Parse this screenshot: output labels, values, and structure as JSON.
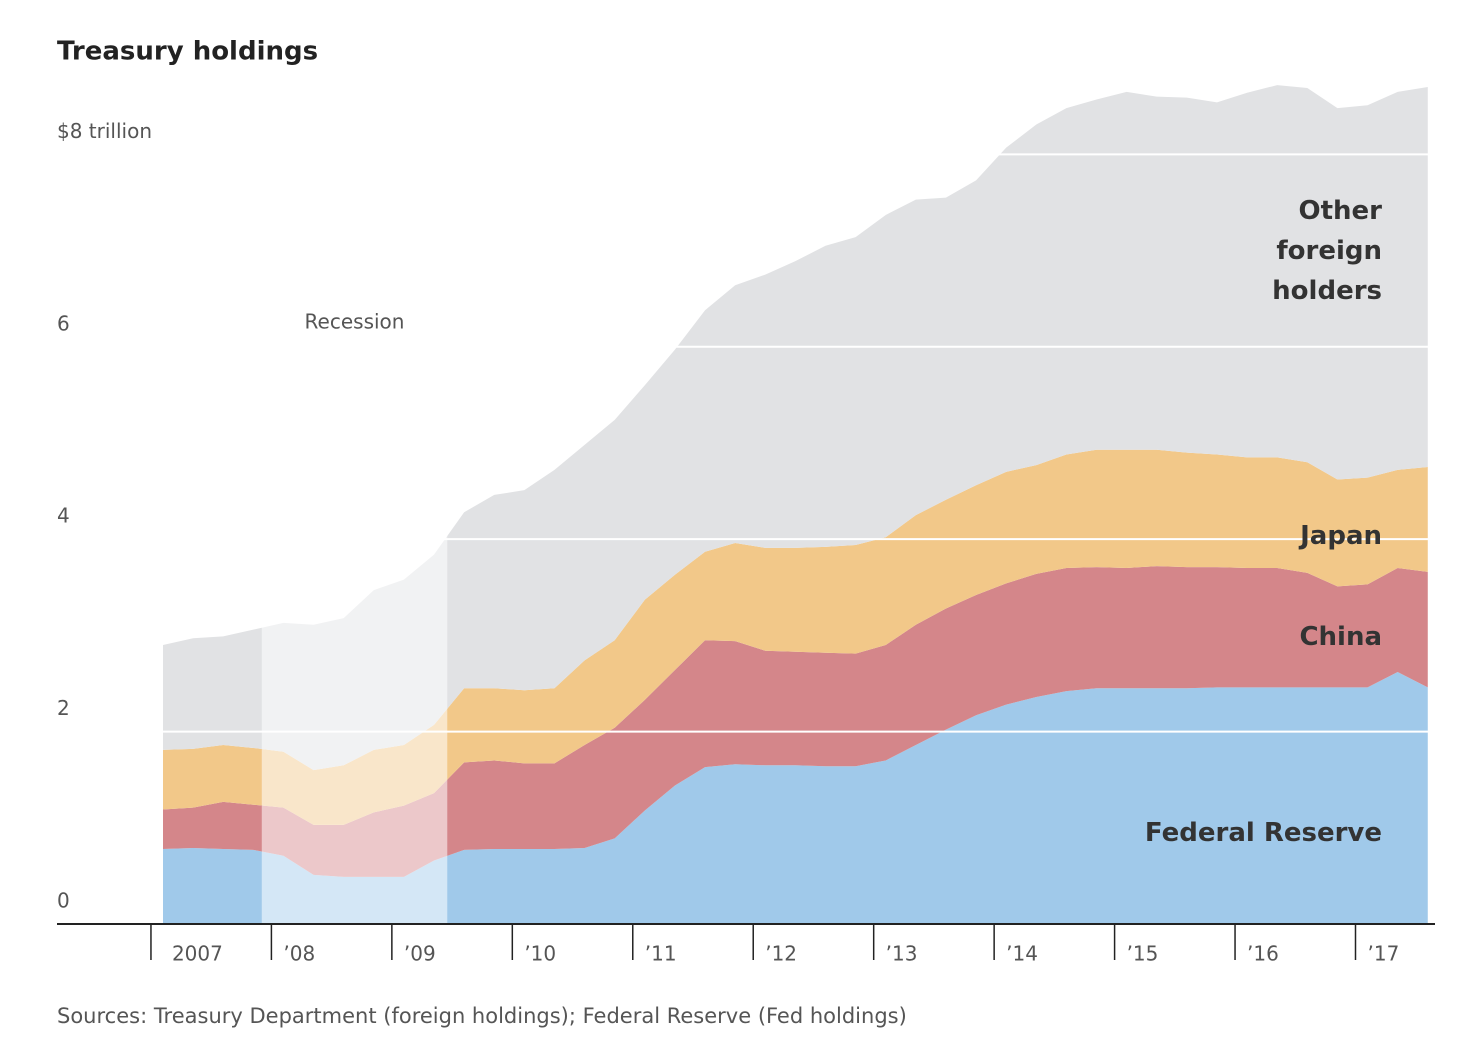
{
  "chart_data": {
    "type": "stacked_area",
    "title": "Treasury holdings",
    "source": "Sources: Treasury Department (foreign holdings); Federal Reserve (Fed holdings)",
    "x": [
      2007.1,
      2007.35,
      2007.6,
      2007.85,
      2008.1,
      2008.35,
      2008.6,
      2008.85,
      2009.1,
      2009.35,
      2009.6,
      2009.85,
      2010.1,
      2010.35,
      2010.6,
      2010.85,
      2011.1,
      2011.35,
      2011.6,
      2011.85,
      2012.1,
      2012.35,
      2012.6,
      2012.85,
      2013.1,
      2013.35,
      2013.6,
      2013.85,
      2014.1,
      2014.35,
      2014.6,
      2014.85,
      2015.1,
      2015.35,
      2015.6,
      2015.85,
      2016.1,
      2016.35,
      2016.6,
      2016.85,
      2017.1,
      2017.35,
      2017.6
    ],
    "series": [
      {
        "name": "Federal Reserve",
        "color": "#a0c9ea",
        "values": [
          0.78,
          0.79,
          0.78,
          0.77,
          0.71,
          0.51,
          0.49,
          0.49,
          0.49,
          0.66,
          0.77,
          0.78,
          0.78,
          0.78,
          0.79,
          0.89,
          1.18,
          1.44,
          1.63,
          1.66,
          1.65,
          1.65,
          1.64,
          1.64,
          1.7,
          1.86,
          2.02,
          2.17,
          2.28,
          2.36,
          2.42,
          2.45,
          2.45,
          2.45,
          2.45,
          2.46,
          2.46,
          2.46,
          2.46,
          2.46,
          2.46,
          2.62,
          2.46
        ]
      },
      {
        "name": "China",
        "color": "#d4868a",
        "values": [
          0.41,
          0.42,
          0.49,
          0.47,
          0.5,
          0.52,
          0.54,
          0.67,
          0.74,
          0.7,
          0.91,
          0.92,
          0.89,
          0.89,
          1.07,
          1.15,
          1.15,
          1.2,
          1.32,
          1.28,
          1.19,
          1.18,
          1.18,
          1.17,
          1.2,
          1.25,
          1.26,
          1.25,
          1.26,
          1.28,
          1.28,
          1.26,
          1.25,
          1.27,
          1.26,
          1.25,
          1.24,
          1.24,
          1.19,
          1.05,
          1.07,
          1.08,
          1.2
        ]
      },
      {
        "name": "Japan",
        "color": "#f2c889",
        "values": [
          0.62,
          0.61,
          0.59,
          0.59,
          0.58,
          0.57,
          0.62,
          0.65,
          0.63,
          0.71,
          0.77,
          0.75,
          0.76,
          0.78,
          0.88,
          0.91,
          1.04,
          0.99,
          0.92,
          1.02,
          1.07,
          1.08,
          1.1,
          1.13,
          1.12,
          1.14,
          1.13,
          1.14,
          1.16,
          1.13,
          1.18,
          1.22,
          1.23,
          1.21,
          1.19,
          1.17,
          1.15,
          1.15,
          1.15,
          1.11,
          1.11,
          1.02,
          1.09
        ]
      },
      {
        "name": "Other foreign holders",
        "color": "#e1e2e4",
        "values": [
          1.09,
          1.15,
          1.13,
          1.23,
          1.34,
          1.51,
          1.53,
          1.66,
          1.72,
          1.77,
          1.83,
          2.01,
          2.08,
          2.27,
          2.24,
          2.29,
          2.23,
          2.34,
          2.51,
          2.68,
          2.84,
          2.98,
          3.13,
          3.2,
          3.35,
          3.28,
          3.14,
          3.17,
          3.37,
          3.54,
          3.6,
          3.64,
          3.72,
          3.67,
          3.69,
          3.66,
          3.79,
          3.87,
          3.89,
          3.86,
          3.87,
          3.93,
          3.95
        ]
      }
    ],
    "shaded_span": {
      "label": "Recession",
      "x": [
        2007.92,
        2009.46
      ]
    },
    "xlim": [
      2006.22,
      2017.66
    ],
    "xticks": [
      {
        "value": 2007,
        "label": "2007"
      },
      {
        "value": 2008,
        "label": "’08"
      },
      {
        "value": 2009,
        "label": "’09"
      },
      {
        "value": 2010,
        "label": "’10"
      },
      {
        "value": 2011,
        "label": "’11"
      },
      {
        "value": 2012,
        "label": "’12"
      },
      {
        "value": 2013,
        "label": "’13"
      },
      {
        "value": 2014,
        "label": "’14"
      },
      {
        "value": 2015,
        "label": "’15"
      },
      {
        "value": 2016,
        "label": "’16"
      },
      {
        "value": 2017,
        "label": "’17"
      }
    ],
    "ylim": [
      0,
      8.8
    ],
    "yticks": [
      0,
      2,
      4,
      6,
      {
        "value": 8,
        "label": "$8 trillion"
      }
    ],
    "grid": true
  }
}
